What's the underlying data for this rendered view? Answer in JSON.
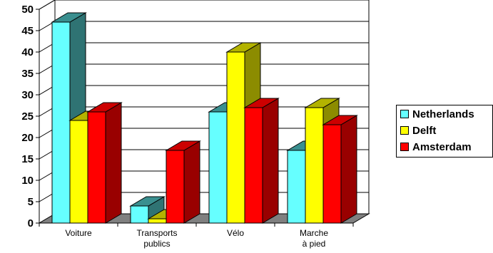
{
  "chart_data": {
    "type": "bar",
    "categories": [
      [
        "Voiture"
      ],
      [
        "Transports",
        "publics"
      ],
      [
        "Vélo"
      ],
      [
        "Marche",
        "à pied"
      ]
    ],
    "series": [
      {
        "name": "Netherlands",
        "values": [
          47,
          4,
          26,
          17
        ],
        "color": "#66ffff",
        "dark": "#3a8f8f",
        "side": "#2f7373"
      },
      {
        "name": "Delft",
        "values": [
          24,
          1,
          40,
          27
        ],
        "color": "#ffff00",
        "dark": "#b3b300",
        "side": "#8c8c00"
      },
      {
        "name": "Amsterdam",
        "values": [
          26,
          17,
          27,
          23
        ],
        "color": "#ff0000",
        "dark": "#cc0000",
        "side": "#990000"
      }
    ],
    "yticks": [
      0,
      5,
      10,
      15,
      20,
      25,
      30,
      35,
      40,
      45,
      50
    ],
    "ylim": [
      0,
      50
    ],
    "grid": true,
    "legend_position": "right",
    "title": "",
    "xlabel": "",
    "ylabel": ""
  }
}
